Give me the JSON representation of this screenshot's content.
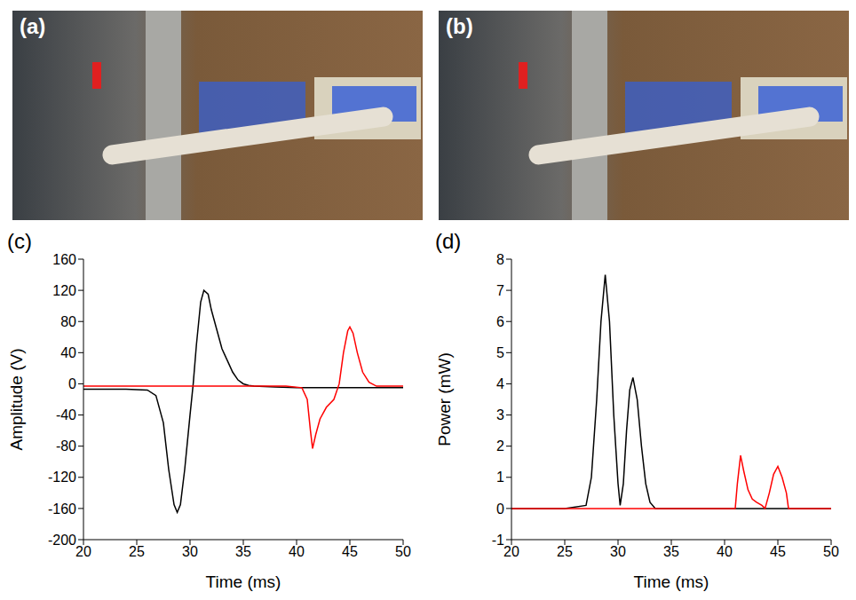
{
  "images": [
    {
      "label": "(a)"
    },
    {
      "label": "(b)"
    }
  ],
  "chart_data": [
    {
      "type": "line",
      "title": "(c)",
      "x_label": "Time (ms)",
      "y_label": "Amplitude (V)",
      "xlim": [
        20,
        50
      ],
      "xticks": [
        20,
        25,
        30,
        35,
        40,
        45,
        50
      ],
      "ylim": [
        -200,
        160
      ],
      "yticks": [
        -200,
        -160,
        -120,
        -80,
        -40,
        0,
        40,
        80,
        120,
        160
      ],
      "grid": false,
      "series": [
        {
          "color": "#000000",
          "x": [
            20,
            22,
            24,
            26,
            26.8,
            27.5,
            28,
            28.5,
            28.8,
            29.1,
            29.5,
            30,
            30.3,
            30.6,
            31,
            31.3,
            31.7,
            32,
            32.5,
            33,
            33.5,
            34,
            34.5,
            35,
            35.5,
            36,
            38,
            40,
            45,
            50
          ],
          "values": [
            -7,
            -7,
            -7,
            -8,
            -15,
            -50,
            -110,
            -155,
            -165,
            -155,
            -110,
            -40,
            0,
            50,
            105,
            120,
            115,
            95,
            70,
            45,
            30,
            15,
            5,
            0,
            -2,
            -3,
            -4,
            -5,
            -5,
            -5
          ]
        },
        {
          "color": "#ff0000",
          "x": [
            20,
            25,
            30,
            35,
            39,
            40.5,
            41,
            41.3,
            41.5,
            41.8,
            42.2,
            42.8,
            43.5,
            44,
            44.4,
            44.8,
            45,
            45.3,
            45.7,
            46.2,
            46.8,
            47.5,
            50
          ],
          "values": [
            -3,
            -3,
            -3,
            -3,
            -3,
            -5,
            -20,
            -60,
            -83,
            -65,
            -45,
            -30,
            -20,
            0,
            40,
            68,
            73,
            65,
            40,
            15,
            2,
            -3,
            -3
          ]
        }
      ]
    },
    {
      "type": "line",
      "title": "(d)",
      "x_label": "Time (ms)",
      "y_label": "Power (mW)",
      "xlim": [
        20,
        50
      ],
      "xticks": [
        20,
        25,
        30,
        35,
        40,
        45,
        50
      ],
      "ylim": [
        -1,
        8
      ],
      "yticks": [
        -1,
        0,
        1,
        2,
        3,
        4,
        5,
        6,
        7,
        8
      ],
      "grid": false,
      "series": [
        {
          "color": "#000000",
          "x": [
            20,
            25,
            27,
            27.5,
            28,
            28.4,
            28.8,
            29.2,
            29.6,
            30,
            30.2,
            30.5,
            30.8,
            31.1,
            31.4,
            31.8,
            32.2,
            32.6,
            33,
            33.5,
            35,
            40,
            50
          ],
          "values": [
            0,
            0,
            0.1,
            1,
            3.5,
            6,
            7.5,
            6,
            3,
            0.8,
            0.1,
            0.8,
            2.5,
            3.8,
            4.2,
            3.5,
            2,
            0.8,
            0.2,
            0,
            0,
            0,
            0
          ]
        },
        {
          "color": "#ff0000",
          "x": [
            20,
            30,
            40,
            41,
            41.2,
            41.5,
            41.8,
            42.2,
            42.6,
            43,
            43.5,
            43.8,
            44.2,
            44.6,
            45,
            45.4,
            45.8,
            46,
            47,
            50
          ],
          "values": [
            0,
            0,
            0,
            0,
            0.8,
            1.7,
            1.2,
            0.6,
            0.3,
            0.2,
            0.1,
            0,
            0.5,
            1.1,
            1.35,
            1,
            0.5,
            0,
            0,
            0
          ]
        }
      ]
    }
  ]
}
